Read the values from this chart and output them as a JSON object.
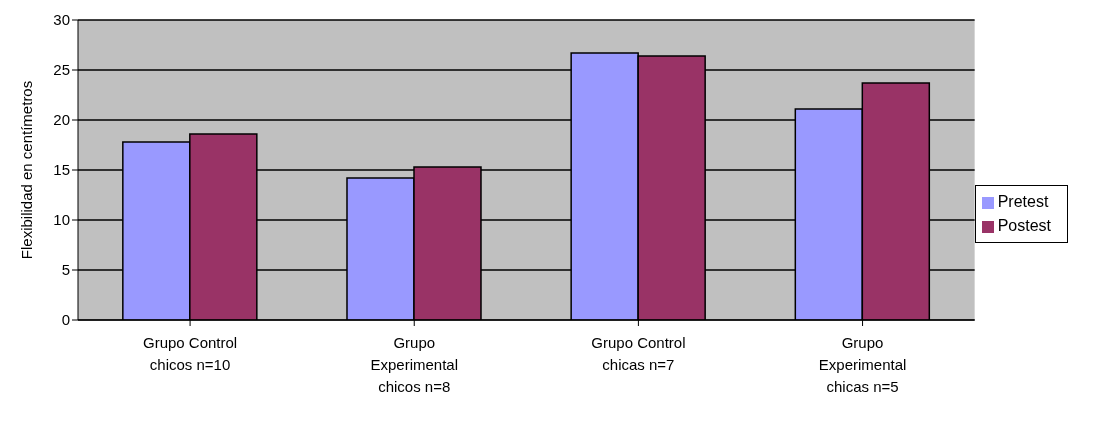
{
  "chart_data": {
    "type": "bar",
    "ylabel": "Flexibilidad en centímetros",
    "categories": [
      "Grupo Control chicos n=10",
      "Grupo Experimental chicos n=8",
      "Grupo Control chicas n=7",
      "Grupo Experimental chicas n=5"
    ],
    "series": [
      {
        "name": "Pretest",
        "color": "#9999ff",
        "values": [
          17.8,
          14.2,
          26.7,
          21.1
        ]
      },
      {
        "name": "Postest",
        "color": "#993366",
        "values": [
          18.6,
          15.3,
          26.4,
          23.7
        ]
      }
    ],
    "ylim": [
      0,
      30
    ],
    "yticks": [
      0,
      5,
      10,
      15,
      20,
      25,
      30
    ],
    "grid": "y",
    "legend": "right"
  }
}
